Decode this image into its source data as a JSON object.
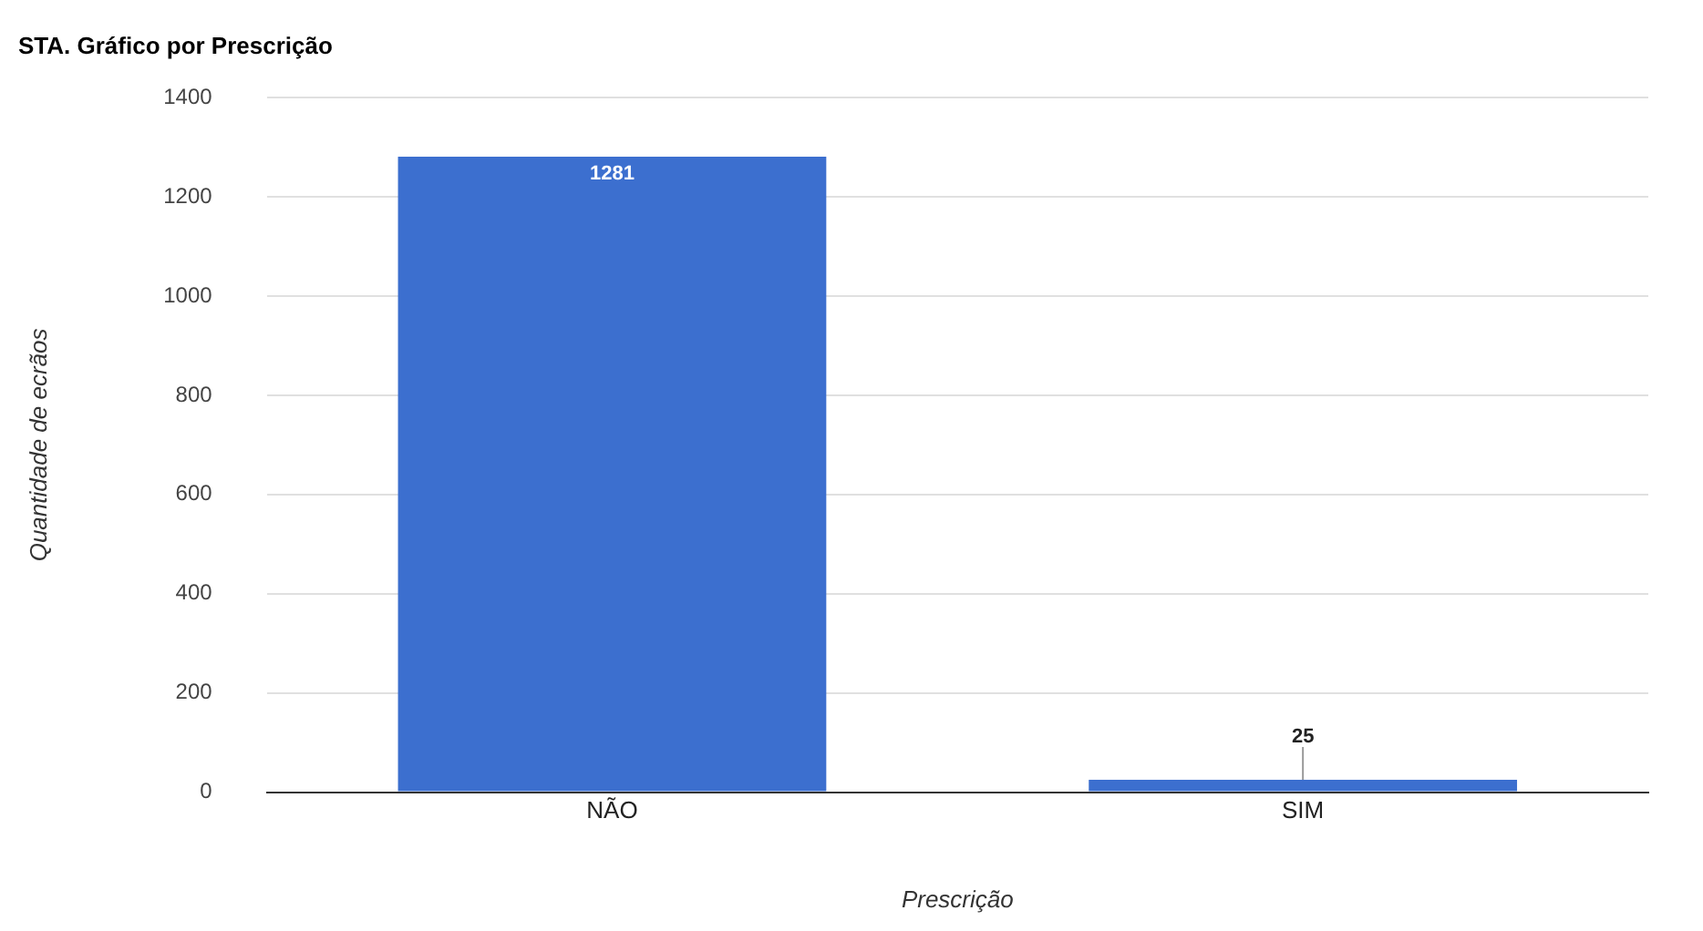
{
  "chart_data": {
    "type": "bar",
    "title": "STA. Gráfico por Prescrição",
    "xlabel": "Prescrição",
    "ylabel": "Quantidade de ecrãos",
    "categories": [
      "NÃO",
      "SIM"
    ],
    "values": [
      1281,
      25
    ],
    "color": "#3c6fcf",
    "ylim": [
      0,
      1400
    ],
    "yticks": [
      0,
      200,
      400,
      600,
      800,
      1000,
      1200,
      1400
    ],
    "grid": "y",
    "data_labels": true
  }
}
